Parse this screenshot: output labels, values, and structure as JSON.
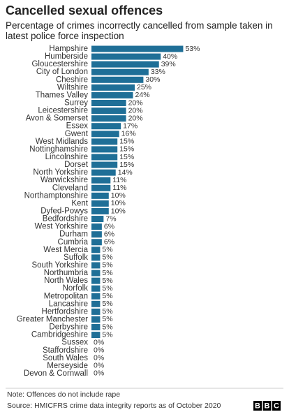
{
  "chart_data": {
    "type": "bar",
    "orientation": "horizontal",
    "title": "Cancelled sexual offences",
    "subtitle": "Percentage of crimes incorrectly cancelled from sample taken in latest police force inspection",
    "categories": [
      "Hampshire",
      "Humberside",
      "Gloucestershire",
      "City of London",
      "Cheshire",
      "Wiltshire",
      "Thames Valley",
      "Surrey",
      "Leicestershire",
      "Avon & Somerset",
      "Essex",
      "Gwent",
      "West Midlands",
      "Nottinghamshire",
      "Lincolnshire",
      "Dorset",
      "North Yorkshire",
      "Warwickshire",
      "Cleveland",
      "Northamptonshire",
      "Kent",
      "Dyfed-Powys",
      "Bedfordshire",
      "West Yorkshire",
      "Durham",
      "Cumbria",
      "West Mercia",
      "Suffolk",
      "South Yorkshire",
      "Northumbria",
      "North Wales",
      "Norfolk",
      "Metropolitan",
      "Lancashire",
      "Hertfordshire",
      "Greater Manchester",
      "Derbyshire",
      "Cambridgeshire",
      "Sussex",
      "Staffordshire",
      "South Wales",
      "Merseyside",
      "Devon & Cornwall"
    ],
    "values": [
      53,
      40,
      39,
      33,
      30,
      25,
      24,
      20,
      20,
      20,
      17,
      16,
      15,
      15,
      15,
      15,
      14,
      11,
      11,
      10,
      10,
      10,
      7,
      6,
      6,
      6,
      5,
      5,
      5,
      5,
      5,
      5,
      5,
      5,
      5,
      5,
      5,
      5,
      0,
      0,
      0,
      0,
      0
    ],
    "value_labels": [
      "53%",
      "40%",
      "39%",
      "33%",
      "30%",
      "25%",
      "24%",
      "20%",
      "20%",
      "20%",
      "17%",
      "16%",
      "15%",
      "15%",
      "15%",
      "15%",
      "14%",
      "11%",
      "11%",
      "10%",
      "10%",
      "10%",
      "7%",
      "6%",
      "6%",
      "6%",
      "5%",
      "5%",
      "5%",
      "5%",
      "5%",
      "5%",
      "5%",
      "5%",
      "5%",
      "5%",
      "5%",
      "5%",
      "0%",
      "0%",
      "0%",
      "0%",
      "0%"
    ],
    "color": "#1f6f97",
    "note": "Note: Offences do not include rape",
    "source": "Source: HMICFRS crime data integrity reports as of October 2020",
    "logo": [
      "B",
      "B",
      "C"
    ]
  }
}
